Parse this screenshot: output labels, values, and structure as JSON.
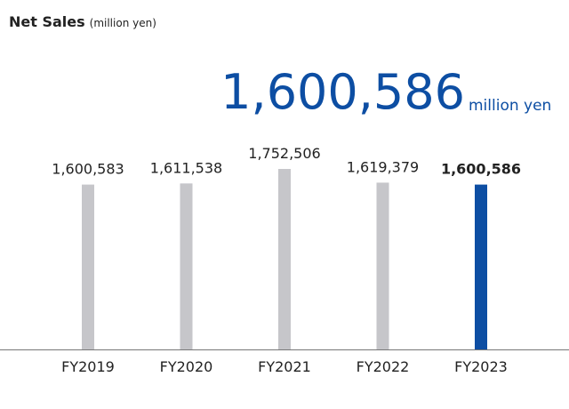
{
  "chart_data": {
    "type": "bar",
    "title": "Net Sales",
    "subtitle": "(million yen)",
    "headline": "1,600,586",
    "headline_unit": "million yen",
    "categories": [
      "FY2019",
      "FY2020",
      "FY2021",
      "FY2022",
      "FY2023"
    ],
    "values": [
      1600583,
      1611538,
      1752506,
      1619379,
      1600586
    ],
    "value_labels": [
      "1,600,583",
      "1,611,538",
      "1,752,506",
      "1,619,379",
      "1,600,586"
    ],
    "color": "#c6c6ca",
    "highlight": "FY2023",
    "highlight_color": "#0d4ea3"
  }
}
